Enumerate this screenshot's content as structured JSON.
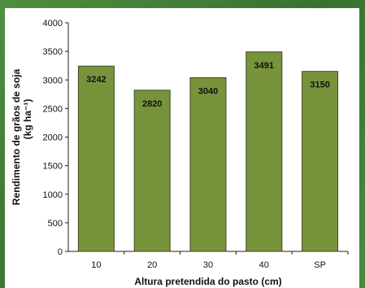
{
  "chart_data": {
    "type": "bar",
    "categories": [
      "10",
      "20",
      "30",
      "40",
      "SP"
    ],
    "values": [
      3242,
      2820,
      3040,
      3491,
      3150
    ],
    "data_labels": [
      "3242",
      "2820",
      "3040",
      "3491",
      "3150"
    ],
    "title": "",
    "xlabel": "Altura pretendida do pasto (cm)",
    "ylabel_line1": "Rendimento de grãos de soja",
    "ylabel_line2": "(kg ha⁻¹)",
    "ylim": [
      0,
      4000
    ],
    "yticks": [
      "0",
      "500",
      "1000",
      "1500",
      "2000",
      "2500",
      "3000",
      "3500",
      "4000"
    ],
    "grid": false,
    "legend": "none",
    "colors": {
      "bar": "#77933c",
      "bar_stroke": "#3b4d1d",
      "background": "#3f7a35",
      "panel": "#ffffff"
    }
  }
}
